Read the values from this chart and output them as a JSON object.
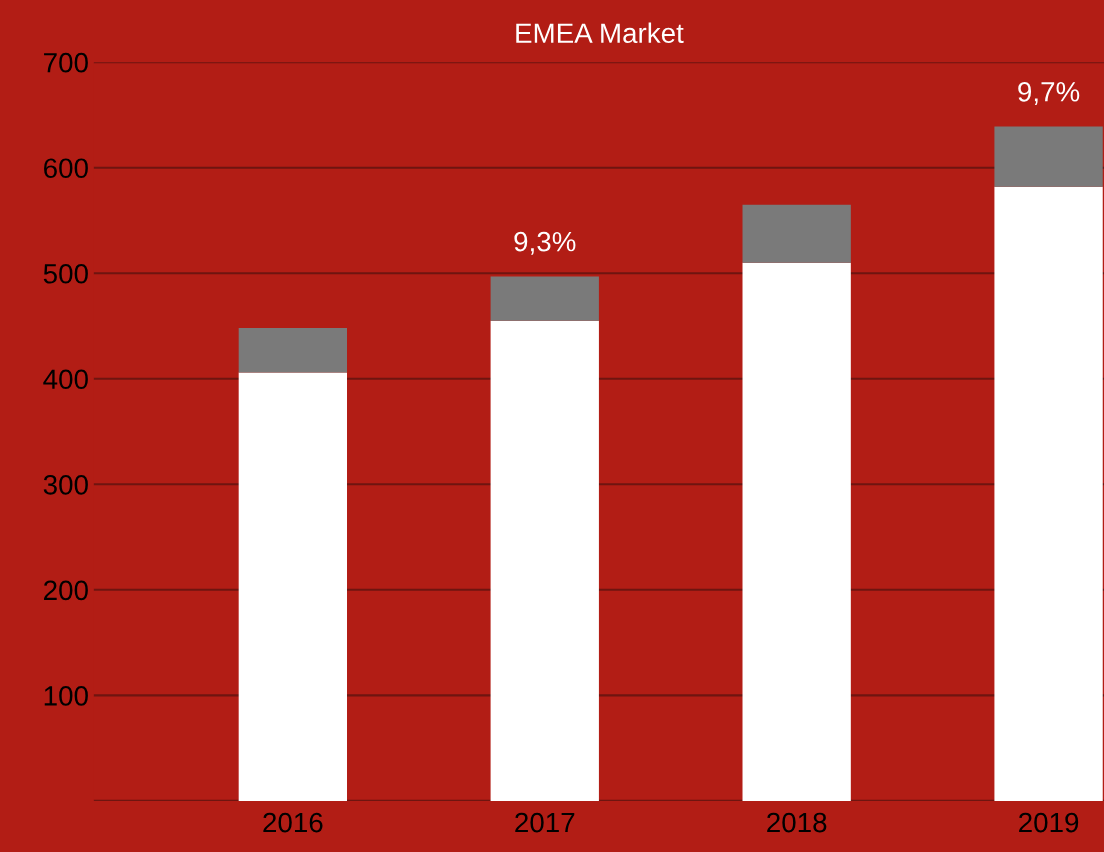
{
  "chart_data": {
    "type": "bar",
    "title": "EMEA Market",
    "categories": [
      "2016",
      "2017",
      "2018",
      "2019"
    ],
    "stacked": true,
    "series": [
      {
        "color": "#ffffff",
        "values": [
          406,
          455,
          510,
          582
        ]
      },
      {
        "color": "#7a7a7a",
        "values": [
          42,
          42,
          55,
          57
        ]
      }
    ],
    "ylim": [
      0,
      700
    ],
    "yticks": [
      {
        "value": 0,
        "label": null
      },
      100,
      200,
      300,
      400,
      500,
      600,
      700
    ],
    "grid": "y",
    "annotations": [
      {
        "text": "9,3%",
        "x": "2017",
        "y": 497
      },
      {
        "text": "9,7%",
        "x": "2019",
        "y": 639
      }
    ]
  }
}
